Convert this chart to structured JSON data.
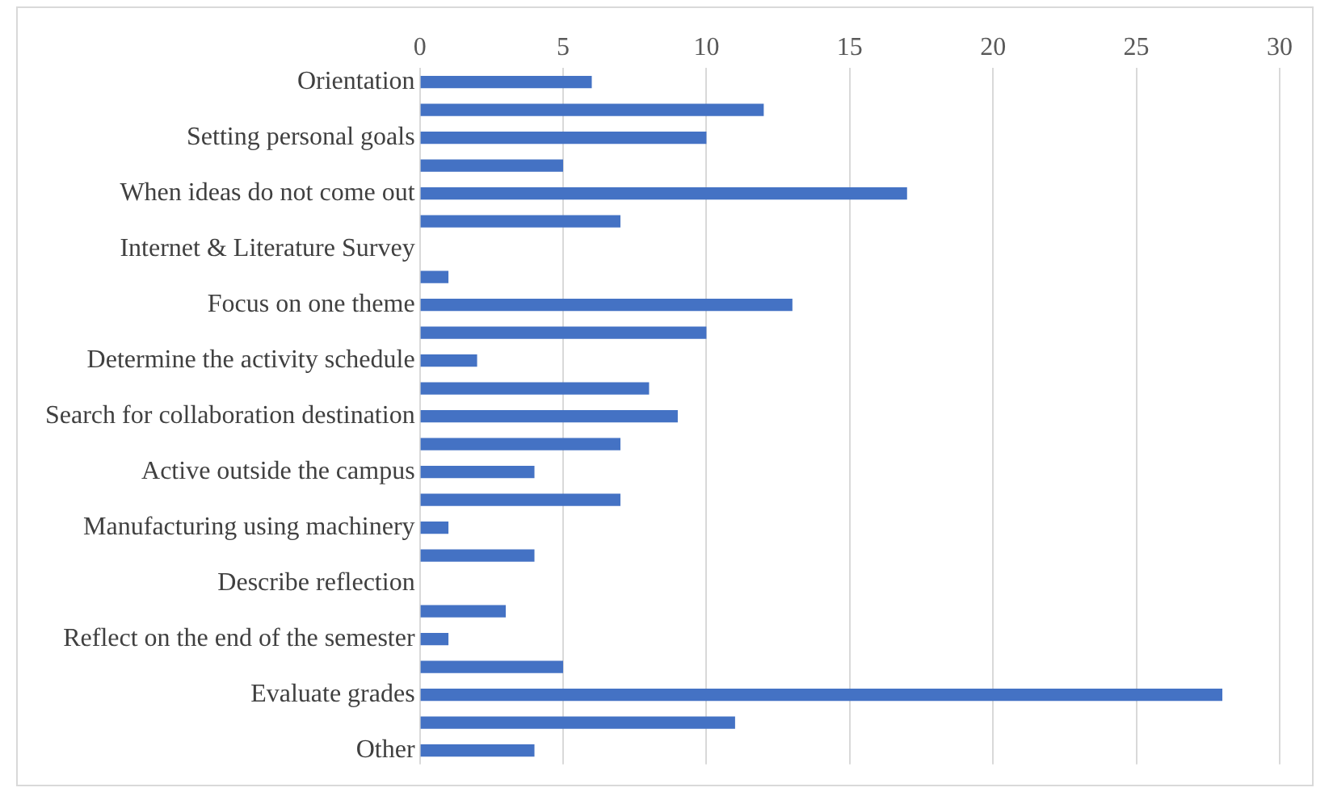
{
  "chart_data": {
    "type": "bar",
    "orientation": "horizontal",
    "categories": [
      "Orientation",
      null,
      "Setting personal goals",
      null,
      "When ideas do not come out",
      null,
      "Internet & Literature Survey",
      null,
      "Focus on one theme",
      null,
      "Determine the activity schedule",
      null,
      "Search for collaboration destination",
      null,
      "Active outside the campus",
      null,
      "Manufacturing using machinery",
      null,
      "Describe reflection",
      null,
      "Reflect on the end of the semester",
      null,
      "Evaluate grades",
      null,
      "Other"
    ],
    "values": [
      6,
      12,
      10,
      5,
      17,
      7,
      0,
      1,
      13,
      10,
      2,
      8,
      9,
      7,
      4,
      7,
      1,
      4,
      0,
      3,
      1,
      5,
      28,
      11,
      4
    ],
    "color": "#4472c4",
    "xlim": [
      0,
      30
    ],
    "xticks": [
      0,
      5,
      10,
      15,
      20,
      25,
      30
    ],
    "grid": "x",
    "legend": false
  }
}
